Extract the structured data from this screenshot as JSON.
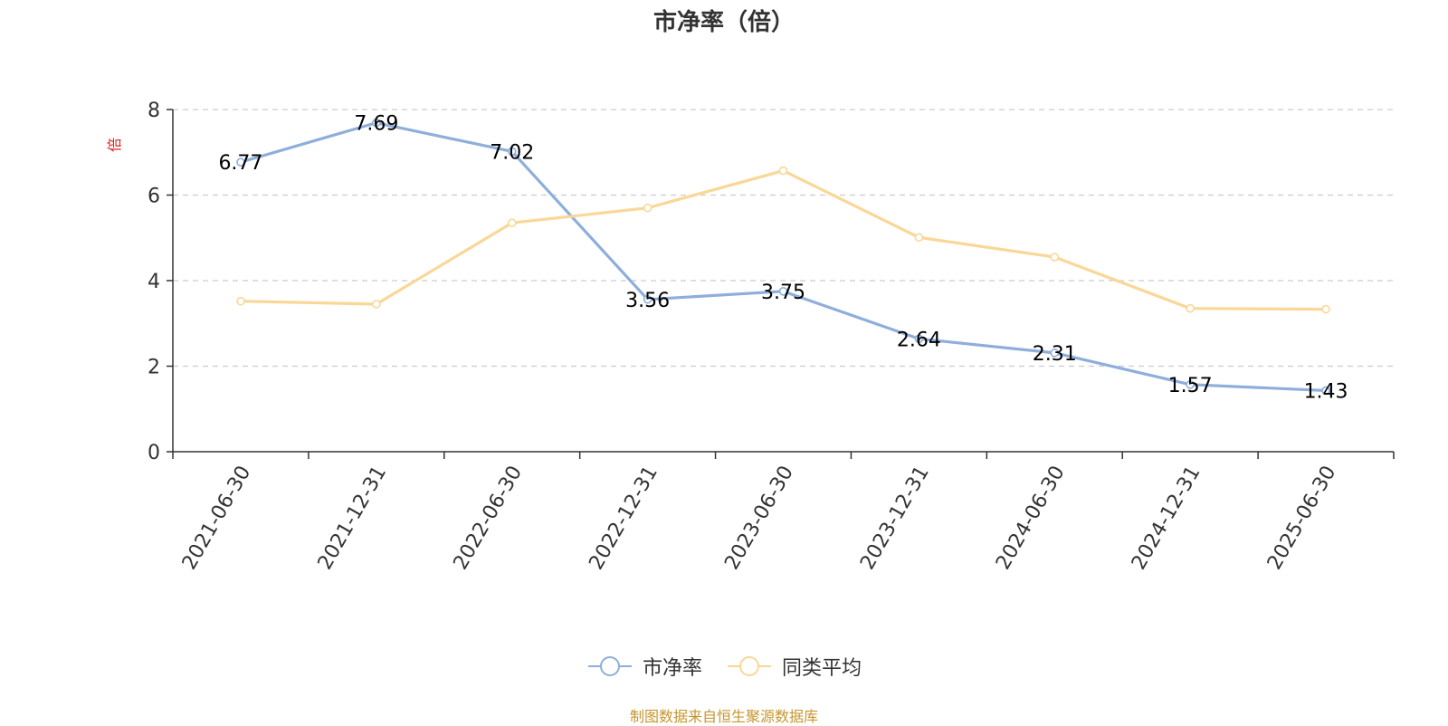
{
  "chart_data": {
    "type": "line",
    "title": "市净率（倍）",
    "ylabel": "倍",
    "xlabel": "",
    "categories": [
      "2021-06-30",
      "2021-12-31",
      "2022-06-30",
      "2022-12-31",
      "2023-06-30",
      "2023-12-31",
      "2024-06-30",
      "2024-12-31",
      "2025-06-30"
    ],
    "ylim": [
      0,
      8
    ],
    "yticks": [
      0,
      2,
      4,
      6,
      8
    ],
    "grid": "horizontal dashed",
    "legend_position": "bottom",
    "series": [
      {
        "name": "市净率",
        "color": "#8eaedb",
        "values": [
          6.77,
          7.69,
          7.02,
          3.56,
          3.75,
          2.64,
          2.31,
          1.57,
          1.43
        ],
        "labels": [
          "6.77",
          "7.69",
          "7.02",
          "3.56",
          "3.75",
          "2.64",
          "2.31",
          "1.57",
          "1.43"
        ]
      },
      {
        "name": "同类平均",
        "color": "#fad797",
        "values": [
          3.52,
          3.45,
          5.35,
          5.7,
          6.57,
          5.01,
          4.55,
          3.35,
          3.33
        ]
      }
    ]
  },
  "source": "制图数据来自恒生聚源数据库"
}
